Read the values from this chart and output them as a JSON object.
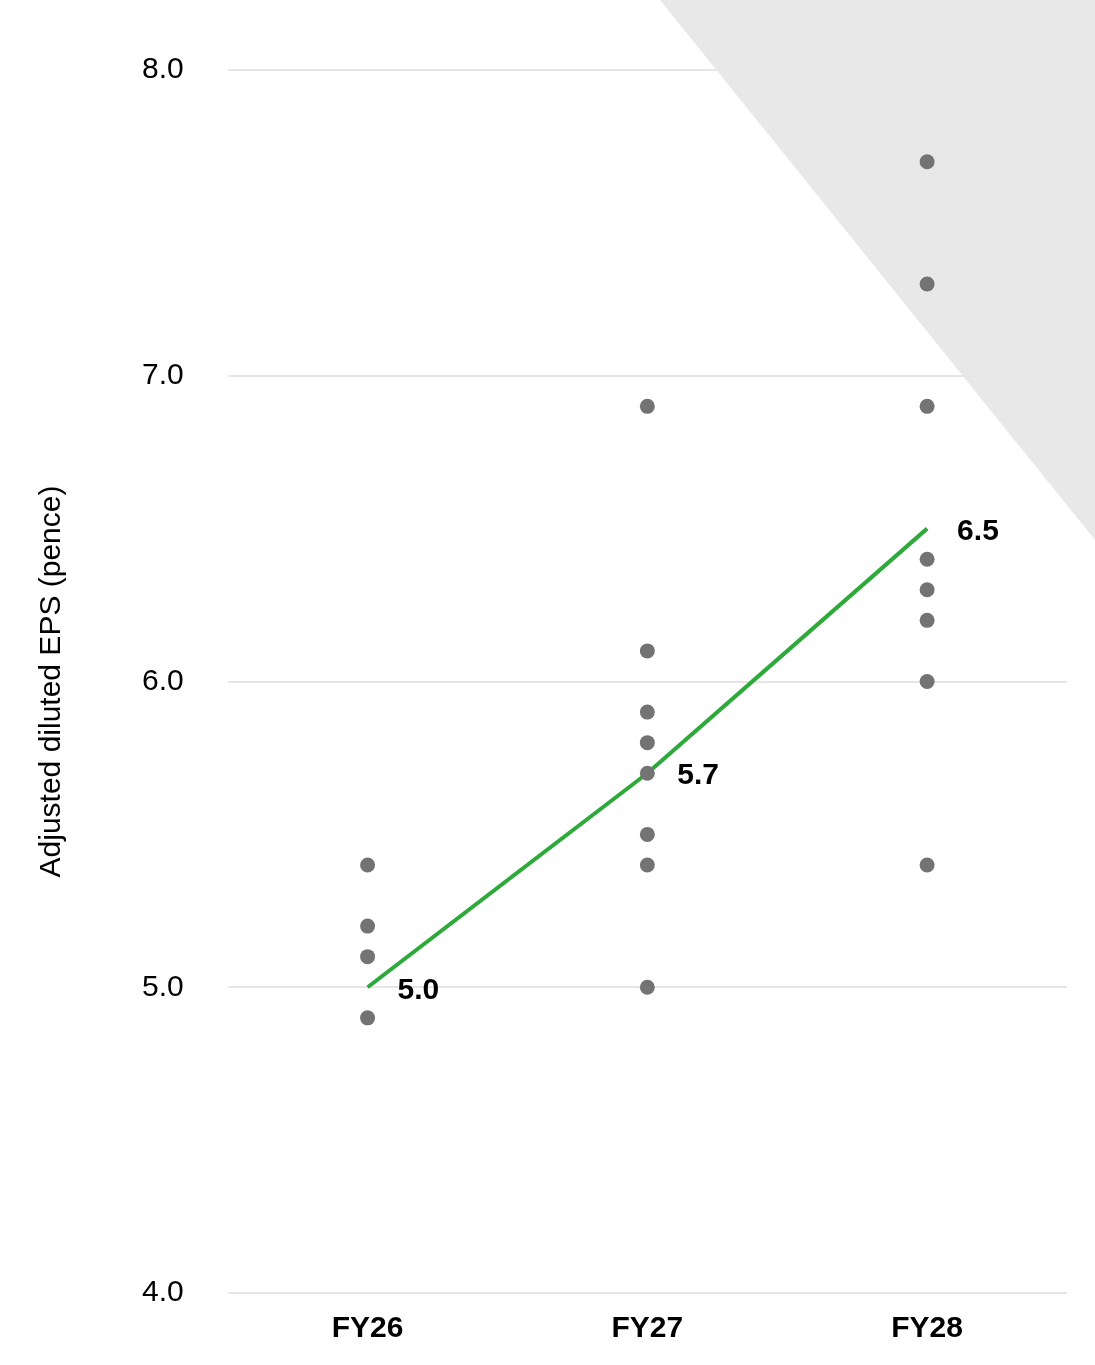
{
  "chart_data": {
    "type": "line",
    "ylabel": "Adjusted diluted EPS (pence)",
    "categories": [
      "FY26",
      "FY27",
      "FY28"
    ],
    "ylim": [
      4,
      8
    ],
    "yticks": [
      {
        "value": 4,
        "label": "4.0"
      },
      {
        "value": 5,
        "label": "5.0"
      },
      {
        "value": 6,
        "label": "6.0"
      },
      {
        "value": 7,
        "label": "7.0"
      },
      {
        "value": 8,
        "label": "8.0"
      }
    ],
    "grid": "y",
    "legend": false,
    "series": [
      {
        "type": "scatter",
        "color": "#737373",
        "marker": "circle",
        "x": [
          "FY26",
          "FY26",
          "FY26",
          "FY26",
          "FY27",
          "FY27",
          "FY27",
          "FY27",
          "FY27",
          "FY27",
          "FY27",
          "FY27",
          "FY28",
          "FY28",
          "FY28",
          "FY28",
          "FY28",
          "FY28",
          "FY28",
          "FY28"
        ],
        "values": [
          5.4,
          5.2,
          5.1,
          4.9,
          6.9,
          6.1,
          5.9,
          5.8,
          5.7,
          5.5,
          5.4,
          5.0,
          7.7,
          7.3,
          6.9,
          6.4,
          6.3,
          6.2,
          6.0,
          5.4
        ]
      },
      {
        "color": "#2eaa3a",
        "marker": "none",
        "values": [
          5.0,
          5.7,
          6.5
        ],
        "value_labels": [
          "5.0",
          "5.7",
          "6.5"
        ]
      }
    ]
  }
}
